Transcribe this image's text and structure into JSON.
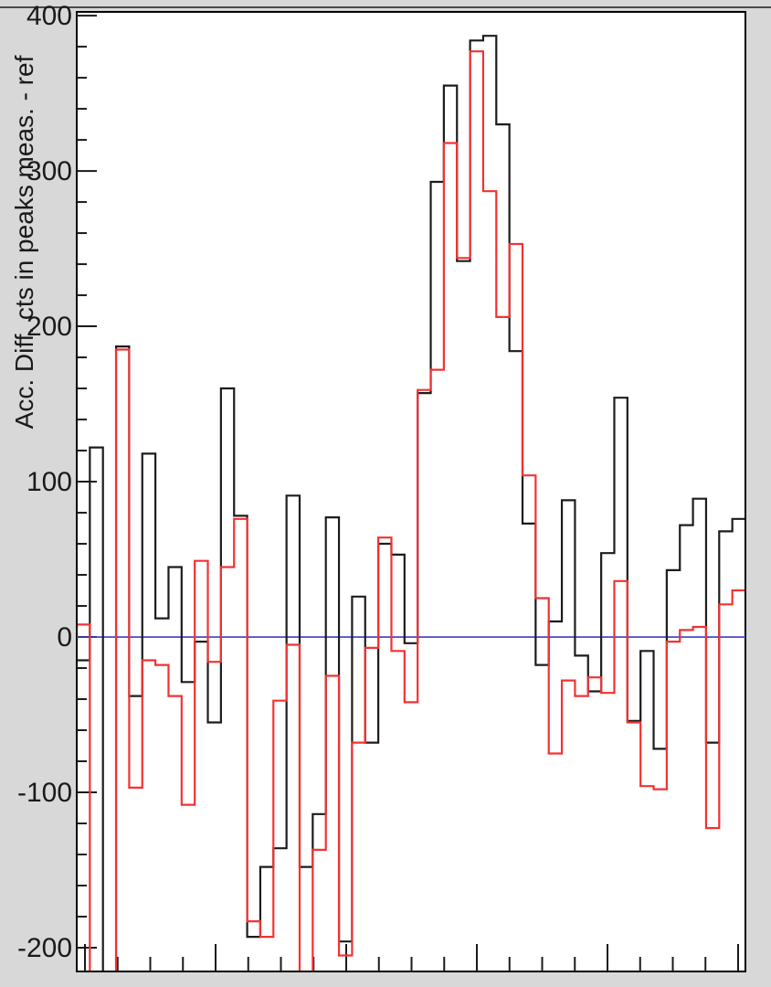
{
  "colors": {
    "background": "#d8d8d8",
    "plot_background": "#ffffff",
    "frame": "#000000",
    "tick": "#1a1a1a",
    "text": "#1a1a1a",
    "window_edge": "#4a4a4a",
    "zero_line": "#3c3cc8",
    "series_measured": "#1c1c1c",
    "series_reference": "#f23232"
  },
  "chart_data": {
    "type": "step-histogram",
    "title": "",
    "xlabel": "",
    "ylabel": "Acc. Diff. cts in peaks meas. - ref",
    "ylim": [
      -215.3,
      402.4
    ],
    "y_major_ticks": [
      400,
      300,
      200,
      100,
      0,
      -100,
      -200
    ],
    "y_tick_labels": [
      "400",
      "300",
      "200",
      "100",
      "0",
      "-100",
      "-200"
    ],
    "y_minor_step": 20,
    "x_axis": {
      "tick_count": 21,
      "major_every": 4,
      "labels_visible": false
    },
    "zero_line": 0,
    "grid": false,
    "legend": "none",
    "note_offscale_value": -225,
    "series": [
      {
        "name": "measured (black)",
        "color": "#1c1c1c",
        "values": [
          -15,
          122,
          -225,
          187,
          -38,
          118,
          12,
          45,
          -29,
          -3,
          -55,
          160,
          78,
          -193,
          -148,
          -136,
          91,
          -148,
          -114,
          77,
          -196,
          26,
          -68,
          60,
          53,
          -4,
          157,
          293,
          355,
          242,
          384,
          387,
          330,
          184,
          73,
          -18,
          10,
          88,
          -12,
          -35,
          54,
          154,
          -54,
          -9,
          -72,
          43,
          72,
          89,
          -68,
          68,
          76
        ]
      },
      {
        "name": "reference (red)",
        "color": "#f23232",
        "values": [
          8,
          -225,
          -225,
          185,
          -97,
          -15,
          -18,
          -38,
          -108,
          49,
          -16,
          45,
          76,
          -183,
          -193,
          -41,
          -5,
          -225,
          -137,
          -25,
          -205,
          -68,
          -7,
          64,
          -9,
          -42,
          159,
          172,
          318,
          244,
          377,
          287,
          206,
          253,
          104,
          25,
          -75,
          -28,
          -38,
          -26,
          -36,
          36,
          -55,
          -96,
          -98,
          -3,
          4.5,
          6.5,
          -123,
          21,
          30
        ]
      }
    ]
  }
}
